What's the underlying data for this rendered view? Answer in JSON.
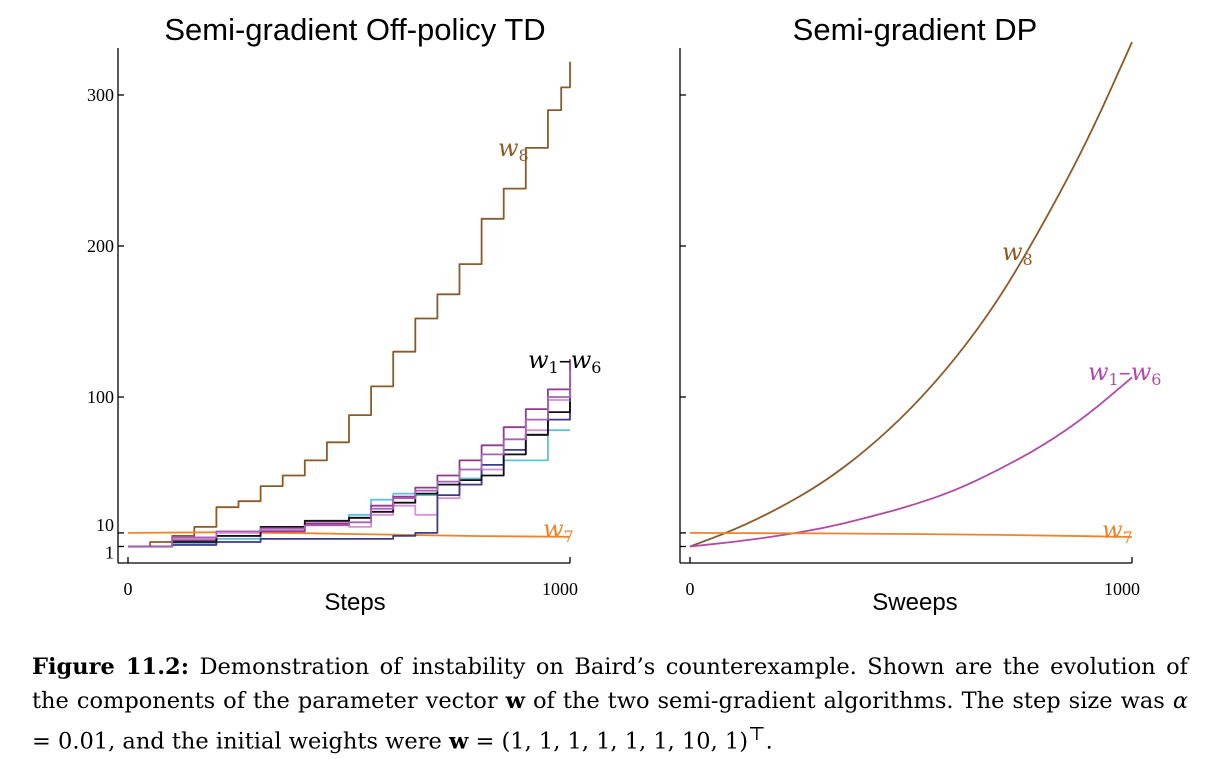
{
  "chart_data": [
    {
      "type": "line",
      "title": "Semi-gradient Off-policy TD",
      "xlabel": "Steps",
      "ylabel": "",
      "xlim": [
        0,
        1000
      ],
      "ylim": [
        -8,
        330
      ],
      "x_ticks": [
        {
          "value": 0,
          "label": "0"
        },
        {
          "value": 1000,
          "label": "1000"
        }
      ],
      "y_ticks": [
        {
          "value": 1,
          "label": "1"
        },
        {
          "value": 10,
          "label": "10"
        },
        {
          "value": 100,
          "label": "100"
        },
        {
          "value": 200,
          "label": "200"
        },
        {
          "value": 300,
          "label": "300"
        }
      ],
      "grid": false,
      "series": [
        {
          "key": "w8",
          "label_main": "w",
          "label_sub": "8",
          "color": "#8a5a28",
          "step": true,
          "x": [
            0,
            50,
            100,
            150,
            200,
            250,
            300,
            350,
            400,
            450,
            500,
            550,
            600,
            650,
            700,
            750,
            800,
            850,
            900,
            950,
            980,
            1000
          ],
          "y": [
            1,
            4,
            8,
            14,
            27,
            31,
            41,
            48,
            58,
            70,
            88,
            107,
            130,
            152,
            168,
            188,
            218,
            238,
            265,
            290,
            305,
            322
          ]
        },
        {
          "key": "w7",
          "label_main": "w",
          "label_sub": "7",
          "color": "#f0822a",
          "step": false,
          "x": [
            0,
            200,
            400,
            500,
            600,
            800,
            1000
          ],
          "y": [
            10,
            10.4,
            9.8,
            9.3,
            8.8,
            7.9,
            7.4
          ]
        },
        {
          "key": "c1",
          "color": "#5fc0d9",
          "step": true,
          "x": [
            0,
            100,
            200,
            300,
            400,
            500,
            550,
            600,
            650,
            700,
            750,
            800,
            850,
            900,
            950,
            1000
          ],
          "y": [
            1,
            3,
            6,
            12,
            16,
            22,
            32,
            36,
            35,
            42,
            46,
            52,
            58,
            58,
            78,
            78
          ]
        },
        {
          "key": "c2",
          "color": "#d98fd9",
          "step": true,
          "x": [
            0,
            100,
            200,
            300,
            400,
            500,
            550,
            600,
            650,
            700,
            750,
            800,
            850,
            900,
            950,
            1000
          ],
          "y": [
            1,
            6,
            10,
            12,
            17,
            14,
            22,
            28,
            22,
            33,
            42,
            52,
            62,
            78,
            98,
            110
          ]
        },
        {
          "key": "c3",
          "color": "#8e3a8e",
          "step": true,
          "x": [
            0,
            100,
            200,
            300,
            400,
            500,
            550,
            600,
            650,
            700,
            750,
            800,
            850,
            900,
            950,
            1000
          ],
          "y": [
            1,
            5,
            8,
            11,
            16,
            20,
            28,
            34,
            40,
            48,
            58,
            68,
            80,
            92,
            105,
            125
          ]
        },
        {
          "key": "c4",
          "color": "#3a3a8e",
          "step": true,
          "x": [
            0,
            100,
            200,
            300,
            400,
            500,
            550,
            600,
            650,
            700,
            750,
            800,
            850,
            900,
            950,
            1000
          ],
          "y": [
            1,
            2,
            4,
            6,
            6,
            6,
            6,
            8,
            10,
            35,
            42,
            55,
            65,
            75,
            85,
            110
          ]
        },
        {
          "key": "c5",
          "color": "#111111",
          "step": true,
          "x": [
            0,
            100,
            200,
            300,
            400,
            500,
            550,
            600,
            650,
            700,
            750,
            800,
            850,
            900,
            950,
            1000
          ],
          "y": [
            1,
            4,
            8,
            14,
            18,
            20,
            24,
            30,
            36,
            42,
            45,
            48,
            62,
            75,
            90,
            97
          ]
        },
        {
          "key": "c6",
          "color": "#a860b8",
          "step": true,
          "x": [
            0,
            100,
            200,
            300,
            400,
            500,
            550,
            600,
            650,
            700,
            750,
            800,
            850,
            900,
            950,
            1000
          ],
          "y": [
            1,
            7,
            11,
            13,
            15,
            17,
            26,
            33,
            38,
            44,
            52,
            62,
            72,
            85,
            100,
            118
          ]
        }
      ],
      "annotations": [
        {
          "series": "w8",
          "main": "w",
          "sub": "8",
          "color": "#8a5a28"
        },
        {
          "series": "w1-w6",
          "main": "w",
          "sub": "1",
          "dash": "–",
          "main2": "w",
          "sub2": "6",
          "color": "#000000"
        },
        {
          "series": "w7",
          "main": "w",
          "sub": "7",
          "color": "#f0822a"
        }
      ]
    },
    {
      "type": "line",
      "title": "Semi-gradient DP",
      "xlabel": "Sweeps",
      "ylabel": "",
      "xlim": [
        0,
        1000
      ],
      "ylim": [
        -8,
        330
      ],
      "x_ticks": [
        {
          "value": 0,
          "label": "0"
        },
        {
          "value": 1000,
          "label": "1000"
        }
      ],
      "y_ticks": [
        {
          "value": 1,
          "label": ""
        },
        {
          "value": 10,
          "label": ""
        },
        {
          "value": 100,
          "label": ""
        },
        {
          "value": 200,
          "label": ""
        },
        {
          "value": 300,
          "label": ""
        }
      ],
      "grid": false,
      "series": [
        {
          "key": "w8",
          "color": "#8a5a28",
          "step": false,
          "x": [
            0,
            100,
            200,
            300,
            400,
            500,
            600,
            700,
            800,
            900,
            1000
          ],
          "y": [
            1,
            12,
            26,
            43,
            65,
            92,
            125,
            165,
            215,
            270,
            335
          ]
        },
        {
          "key": "w1-w6",
          "color": "#b04aa8",
          "step": false,
          "x": [
            0,
            100,
            200,
            300,
            400,
            500,
            600,
            700,
            800,
            900,
            1000
          ],
          "y": [
            1,
            4,
            8,
            13,
            20,
            28,
            38,
            52,
            68,
            88,
            113
          ]
        },
        {
          "key": "w7",
          "color": "#f0822a",
          "step": false,
          "x": [
            0,
            200,
            400,
            600,
            800,
            1000
          ],
          "y": [
            10,
            9.8,
            9.5,
            9.0,
            8.3,
            7.3
          ]
        }
      ],
      "annotations": [
        {
          "series": "w8",
          "main": "w",
          "sub": "8",
          "color": "#8a5a28"
        },
        {
          "series": "w1-w6",
          "main": "w",
          "sub": "1",
          "dash": "–",
          "main2": "w",
          "sub2": "6",
          "color": "#b04aa8"
        },
        {
          "series": "w7",
          "main": "w",
          "sub": "7",
          "color": "#f0822a"
        }
      ]
    }
  ],
  "caption": {
    "label": "Figure 11.2:",
    "text1": " Demonstration of instability on Baird’s counterexample. Shown are the evolution of the components of the parameter vector ",
    "bold_w1": "w",
    "text2": " of the two semi-gradient algorithms. The step size was ",
    "alpha": "α",
    "text3": " = 0.01, and the initial weights were ",
    "bold_w2": "w",
    "text4": " = (1, 1, 1, 1, 1, 1, 10, 1)",
    "sup": "⊤",
    "text5": "."
  }
}
